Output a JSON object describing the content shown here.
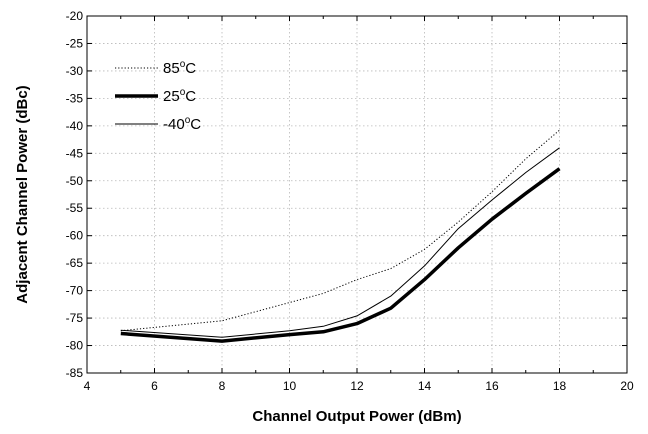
{
  "chart_data": {
    "type": "line",
    "xlabel": "Channel Output Power (dBm)",
    "ylabel": "Adjacent Channel Power (dBc)",
    "xlim": [
      4,
      20
    ],
    "ylim": [
      -85,
      -20
    ],
    "xticks": [
      4,
      6,
      8,
      10,
      12,
      14,
      16,
      18,
      20
    ],
    "yticks": [
      -85,
      -80,
      -75,
      -70,
      -65,
      -60,
      -55,
      -50,
      -45,
      -40,
      -35,
      -30,
      -25,
      -20
    ],
    "grid": true,
    "legend": {
      "position": "top-left",
      "entries": [
        {
          "series": 0,
          "base": "85",
          "sup": "o",
          "unit": "C"
        },
        {
          "series": 1,
          "base": "25",
          "sup": "o",
          "unit": "C"
        },
        {
          "series": 2,
          "base": "-40",
          "sup": "o",
          "unit": "C"
        }
      ]
    },
    "series": [
      {
        "name": "85°C",
        "line_style": "dotted",
        "color": "#000000",
        "x": [
          5,
          8,
          11,
          12,
          13,
          14,
          15,
          16,
          17,
          18
        ],
        "y": [
          -77.3,
          -75.5,
          -70.5,
          -68,
          -66,
          -62.5,
          -57.5,
          -52,
          -46,
          -40.8
        ]
      },
      {
        "name": "25°C",
        "line_style": "thick",
        "color": "#000000",
        "x": [
          5,
          8,
          10,
          11,
          12,
          13,
          14,
          15,
          16,
          17,
          18
        ],
        "y": [
          -77.8,
          -79.2,
          -78,
          -77.5,
          -76,
          -73.2,
          -68,
          -62.2,
          -57,
          -52.3,
          -47.8
        ]
      },
      {
        "name": "-40°C",
        "line_style": "thin",
        "color": "#000000",
        "x": [
          5,
          8,
          10,
          11,
          12,
          13,
          14,
          15,
          16,
          17,
          18
        ],
        "y": [
          -77.2,
          -78.5,
          -77.3,
          -76.5,
          -74.6,
          -71,
          -65.5,
          -58.7,
          -53.5,
          -48.5,
          -44
        ]
      }
    ]
  }
}
